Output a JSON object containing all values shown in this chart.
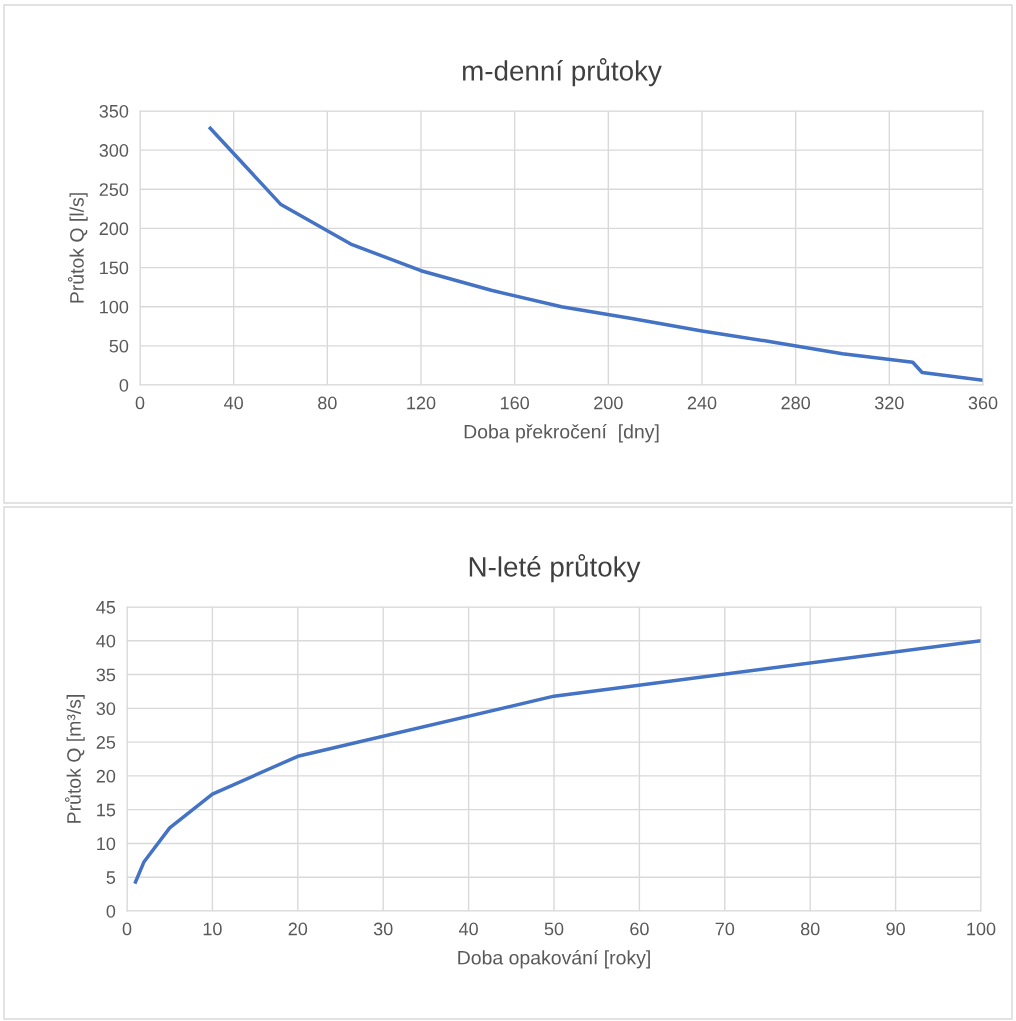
{
  "chart_data": [
    {
      "type": "line",
      "title": "m-denní průtoky",
      "xlabel": "Doba překročení  [dny]",
      "ylabel": "Průtok Q [l/s]",
      "xlim": [
        0,
        360
      ],
      "xticks": [
        0,
        40,
        80,
        120,
        160,
        200,
        240,
        280,
        320,
        360
      ],
      "ylim": [
        0,
        350
      ],
      "yticks": [
        0,
        50,
        100,
        150,
        200,
        250,
        300,
        350
      ],
      "grid": true,
      "line_style": "solid",
      "marker": "none",
      "series": [
        {
          "color": "#4472c4",
          "x": [
            30,
            60,
            90,
            120,
            150,
            180,
            210,
            240,
            270,
            300,
            330,
            334,
            360
          ],
          "values": [
            328,
            231,
            180,
            146,
            121,
            100,
            85,
            69,
            55,
            40,
            29,
            16,
            6
          ]
        }
      ]
    },
    {
      "type": "line",
      "title": "N-leté průtoky",
      "xlabel": "Doba opakování [roky]",
      "ylabel": "Průtok Q [m³/s]",
      "xlim": [
        0,
        100
      ],
      "xticks": [
        0,
        10,
        20,
        30,
        40,
        50,
        60,
        70,
        80,
        90,
        100
      ],
      "ylim": [
        0,
        45
      ],
      "yticks": [
        0,
        5,
        10,
        15,
        20,
        25,
        30,
        35,
        40,
        45
      ],
      "grid": true,
      "line_style": "solid",
      "marker": "none",
      "series": [
        {
          "color": "#4472c4",
          "x": [
            1,
            2,
            5,
            10,
            20,
            50,
            100
          ],
          "values": [
            4.3,
            7.3,
            12.3,
            17.3,
            22.9,
            31.8,
            40.0
          ]
        }
      ]
    }
  ]
}
